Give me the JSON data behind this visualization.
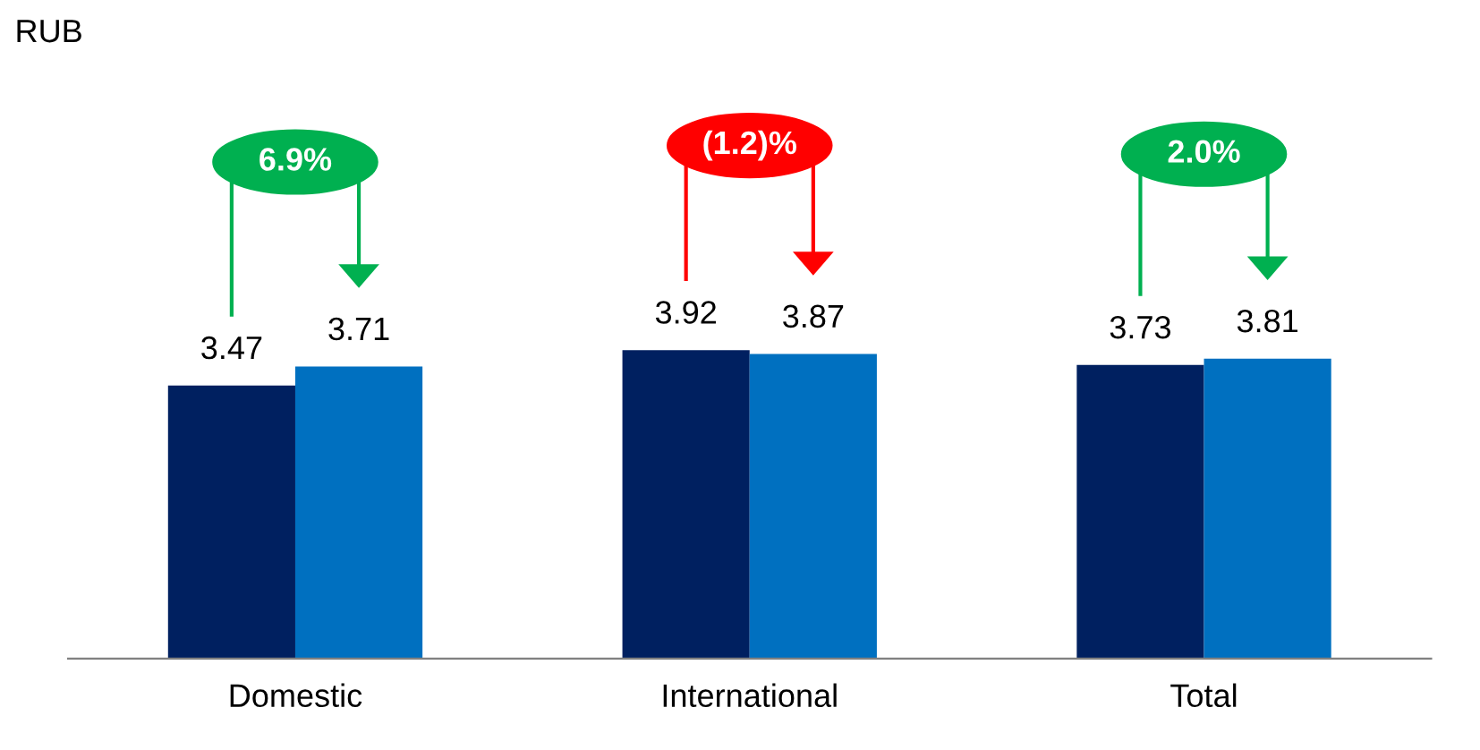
{
  "chart_data": {
    "type": "bar",
    "categories": [
      "Domestic",
      "International",
      "Total"
    ],
    "series": [
      {
        "color": "#002060",
        "values": [
          3.47,
          3.92,
          3.73
        ]
      },
      {
        "color": "#0070c0",
        "values": [
          3.71,
          3.87,
          3.81
        ]
      }
    ],
    "data_labels": true,
    "annotations": [
      "RUB",
      "6.9%",
      "(1.2)%",
      "2.0%"
    ]
  }
}
